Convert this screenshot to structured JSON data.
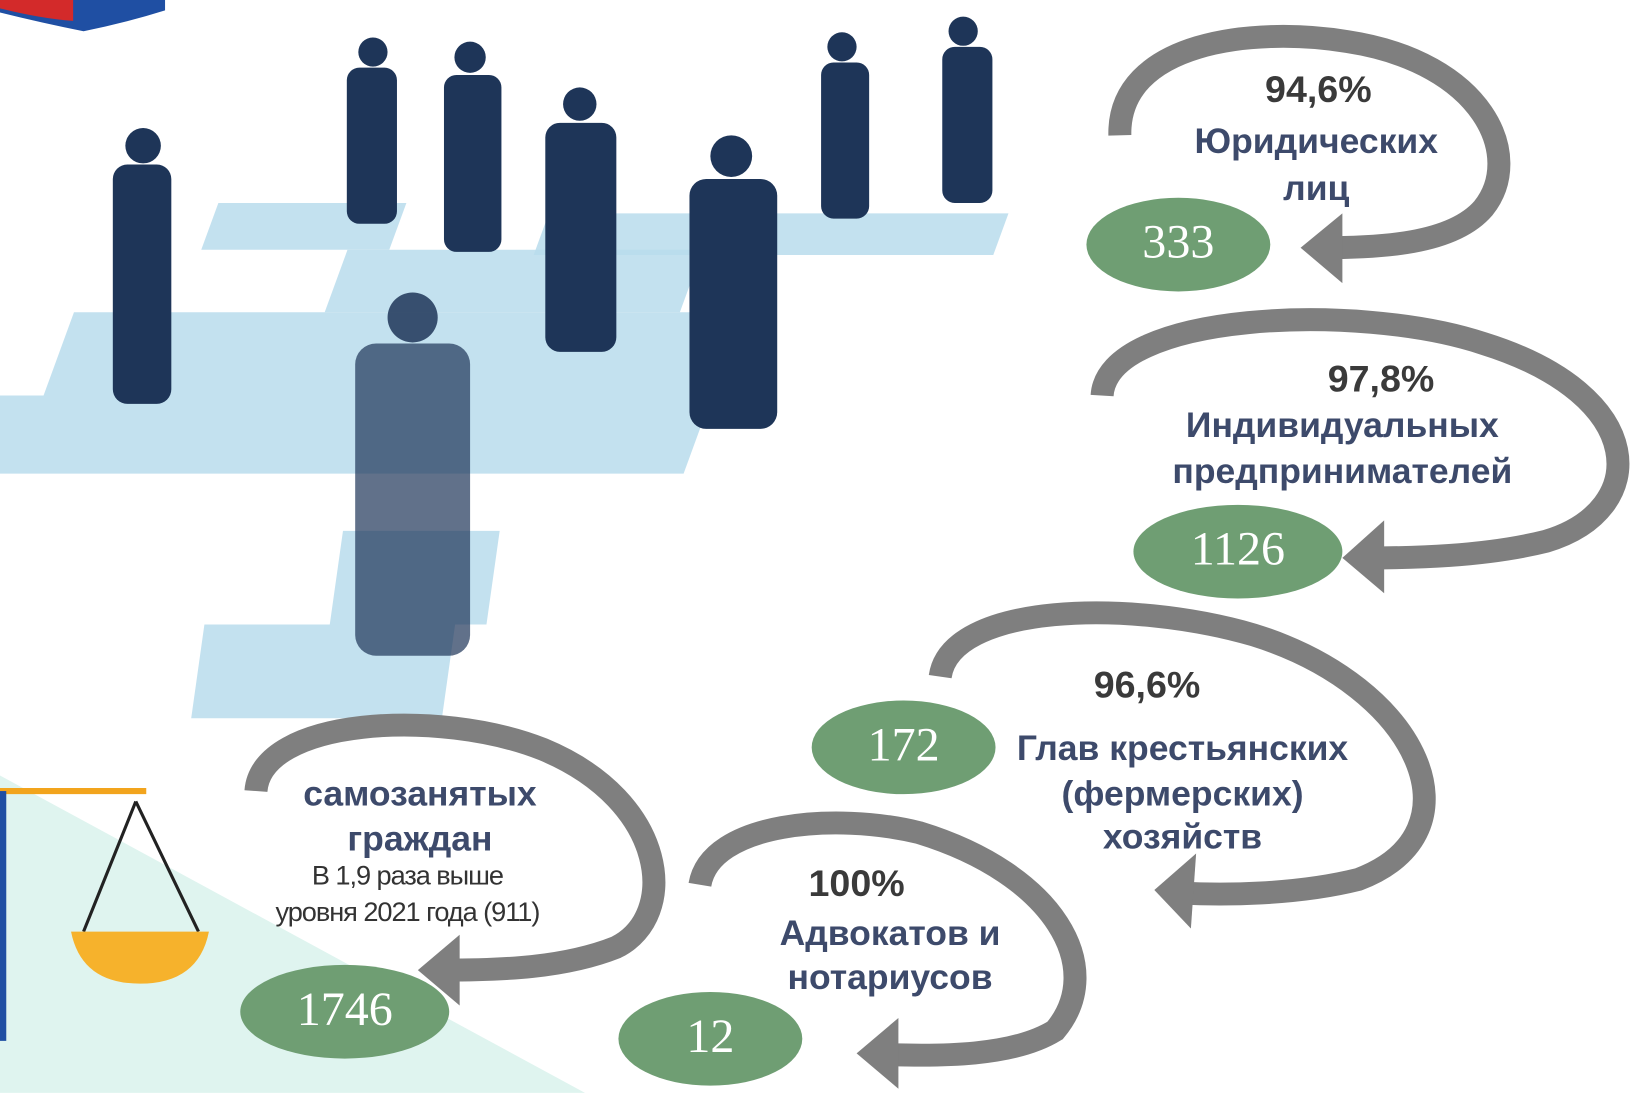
{
  "items": [
    {
      "percent": "94,6%",
      "label": [
        "Юридических",
        "лиц"
      ],
      "count": "333"
    },
    {
      "percent": "97,8%",
      "label": [
        "Индивидуальных",
        "предпринимателей"
      ],
      "count": "1126"
    },
    {
      "percent": "96,6%",
      "label": [
        "Глав крестьянских",
        "(фермерских)",
        "хозяйств"
      ],
      "count": "172"
    },
    {
      "percent": "100%",
      "label": [
        "Адвокатов и",
        "нотариусов"
      ],
      "count": "12"
    },
    {
      "label": [
        "самозанятых",
        "граждан"
      ],
      "note": [
        "В 1,9 раза выше",
        "уровня 2021 года (911)"
      ],
      "count": "1746"
    }
  ]
}
